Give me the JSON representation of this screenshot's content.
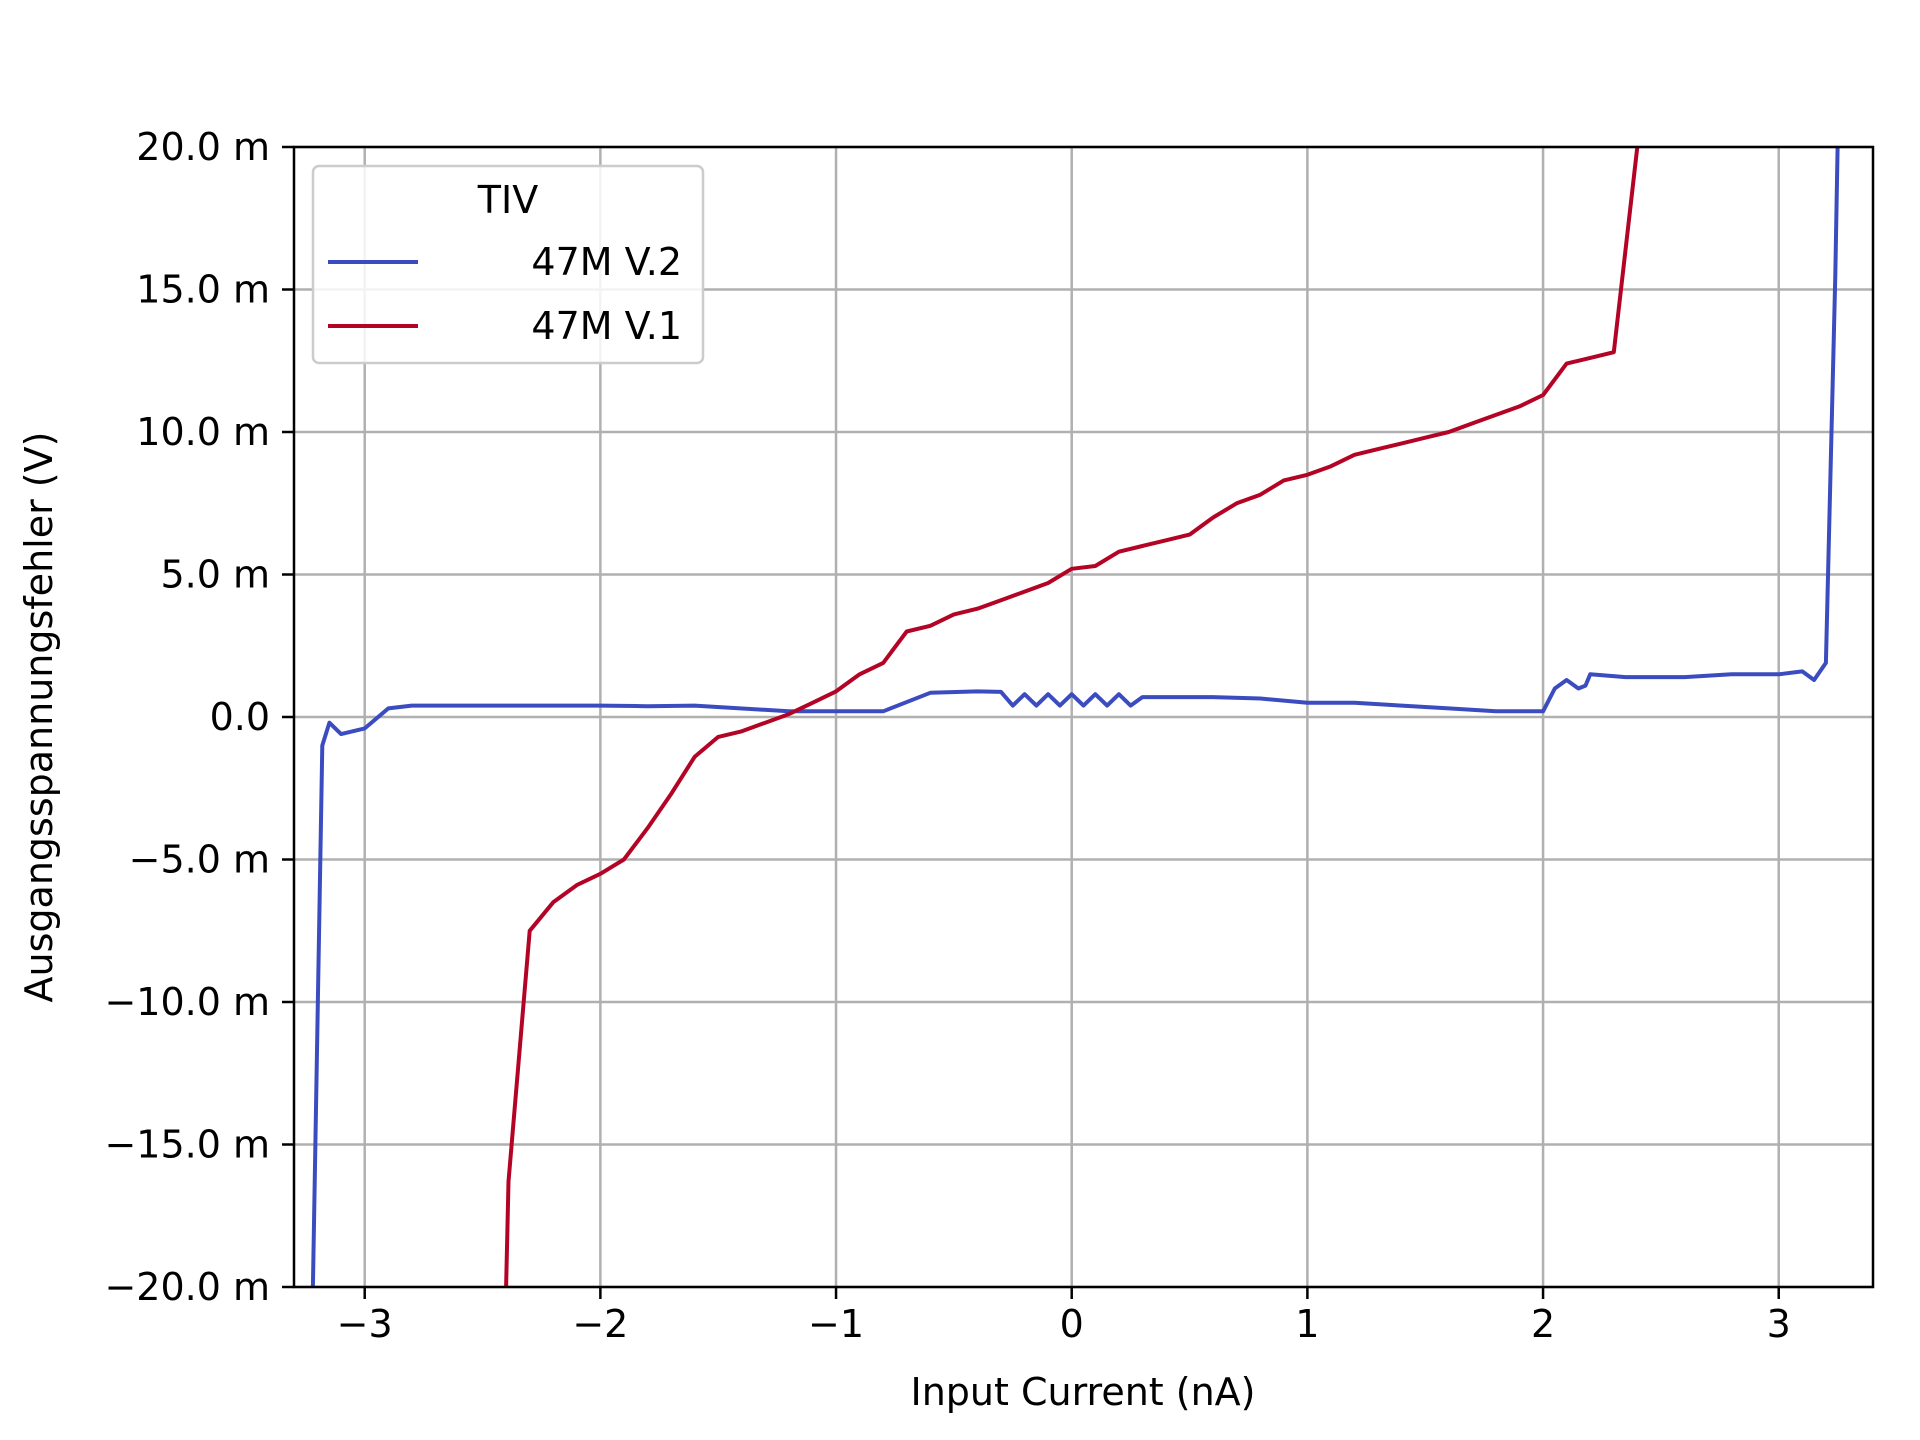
{
  "chart_data": {
    "type": "line",
    "xlabel": "Input Current (nA)",
    "ylabel": "Ausgangsspannungsfehler (V)",
    "xlim": [
      -3.3,
      3.4
    ],
    "ylim": [
      -0.02,
      0.02
    ],
    "grid": true,
    "legend": {
      "title": "TIV",
      "placement": "top-left"
    },
    "x_ticks": [
      {
        "value": -3,
        "label": "−3"
      },
      {
        "value": -2,
        "label": "−2"
      },
      {
        "value": -1,
        "label": "−1"
      },
      {
        "value": 0,
        "label": "0"
      },
      {
        "value": 1,
        "label": "1"
      },
      {
        "value": 2,
        "label": "2"
      },
      {
        "value": 3,
        "label": "3"
      }
    ],
    "y_ticks": [
      {
        "value": 0.02,
        "label": "20.0 m"
      },
      {
        "value": 0.015,
        "label": "15.0 m"
      },
      {
        "value": 0.01,
        "label": "10.0 m"
      },
      {
        "value": 0.005,
        "label": "5.0 m"
      },
      {
        "value": 0.0,
        "label": "0.0"
      },
      {
        "value": -0.005,
        "label": "−5.0 m"
      },
      {
        "value": -0.01,
        "label": "−10.0 m"
      },
      {
        "value": -0.015,
        "label": "−15.0 m"
      },
      {
        "value": -0.02,
        "label": "−20.0 m"
      }
    ],
    "series": [
      {
        "name": "47M V.2",
        "color": "#3b4cc0",
        "points": [
          [
            -3.22,
            -0.02
          ],
          [
            -3.18,
            -0.001
          ],
          [
            -3.15,
            -0.0002
          ],
          [
            -3.1,
            -0.0006
          ],
          [
            -3.0,
            -0.0004
          ],
          [
            -2.9,
            0.0003
          ],
          [
            -2.8,
            0.0004
          ],
          [
            -2.0,
            0.0004
          ],
          [
            -1.8,
            0.00038
          ],
          [
            -1.6,
            0.0004
          ],
          [
            -1.2,
            0.0002
          ],
          [
            -0.8,
            0.0002
          ],
          [
            -0.6,
            0.00085
          ],
          [
            -0.4,
            0.0009
          ],
          [
            -0.3,
            0.00088
          ],
          [
            -0.25,
            0.0004
          ],
          [
            -0.2,
            0.0008
          ],
          [
            -0.15,
            0.0004
          ],
          [
            -0.1,
            0.0008
          ],
          [
            -0.05,
            0.0004
          ],
          [
            0.0,
            0.0008
          ],
          [
            0.05,
            0.0004
          ],
          [
            0.1,
            0.0008
          ],
          [
            0.15,
            0.0004
          ],
          [
            0.2,
            0.0008
          ],
          [
            0.25,
            0.0004
          ],
          [
            0.3,
            0.0007
          ],
          [
            0.6,
            0.0007
          ],
          [
            0.8,
            0.00065
          ],
          [
            1.0,
            0.0005
          ],
          [
            1.2,
            0.0005
          ],
          [
            1.4,
            0.0004
          ],
          [
            1.6,
            0.0003
          ],
          [
            1.8,
            0.0002
          ],
          [
            2.0,
            0.0002
          ],
          [
            2.05,
            0.001
          ],
          [
            2.1,
            0.0013
          ],
          [
            2.15,
            0.001
          ],
          [
            2.18,
            0.0011
          ],
          [
            2.2,
            0.0015
          ],
          [
            2.35,
            0.0014
          ],
          [
            2.6,
            0.0014
          ],
          [
            2.8,
            0.0015
          ],
          [
            3.0,
            0.0015
          ],
          [
            3.1,
            0.0016
          ],
          [
            3.15,
            0.0013
          ],
          [
            3.2,
            0.0019
          ],
          [
            3.24,
            0.0155
          ],
          [
            3.25,
            0.02
          ]
        ]
      },
      {
        "name": "47M V.1",
        "color": "#b40426",
        "points": [
          [
            -2.4,
            -0.02
          ],
          [
            -2.39,
            -0.0163
          ],
          [
            -2.3,
            -0.0075
          ],
          [
            -2.2,
            -0.0065
          ],
          [
            -2.1,
            -0.0059
          ],
          [
            -2.0,
            -0.0055
          ],
          [
            -1.9,
            -0.005
          ],
          [
            -1.8,
            -0.0039
          ],
          [
            -1.7,
            -0.0027
          ],
          [
            -1.6,
            -0.0014
          ],
          [
            -1.5,
            -0.0007
          ],
          [
            -1.4,
            -0.0005
          ],
          [
            -1.3,
            -0.0002
          ],
          [
            -1.2,
            0.0001
          ],
          [
            -1.1,
            0.0005
          ],
          [
            -1.0,
            0.0009
          ],
          [
            -0.9,
            0.0015
          ],
          [
            -0.8,
            0.0019
          ],
          [
            -0.7,
            0.003
          ],
          [
            -0.6,
            0.0032
          ],
          [
            -0.5,
            0.0036
          ],
          [
            -0.4,
            0.0038
          ],
          [
            -0.3,
            0.0041
          ],
          [
            -0.2,
            0.0044
          ],
          [
            -0.1,
            0.0047
          ],
          [
            0.0,
            0.0052
          ],
          [
            0.1,
            0.0053
          ],
          [
            0.2,
            0.0058
          ],
          [
            0.3,
            0.006
          ],
          [
            0.4,
            0.0062
          ],
          [
            0.5,
            0.0064
          ],
          [
            0.6,
            0.007
          ],
          [
            0.7,
            0.0075
          ],
          [
            0.8,
            0.0078
          ],
          [
            0.9,
            0.0083
          ],
          [
            1.0,
            0.0085
          ],
          [
            1.1,
            0.0088
          ],
          [
            1.2,
            0.0092
          ],
          [
            1.3,
            0.0094
          ],
          [
            1.4,
            0.0096
          ],
          [
            1.5,
            0.0098
          ],
          [
            1.6,
            0.01
          ],
          [
            1.7,
            0.0103
          ],
          [
            1.8,
            0.0106
          ],
          [
            1.9,
            0.0109
          ],
          [
            2.0,
            0.0113
          ],
          [
            2.1,
            0.0124
          ],
          [
            2.2,
            0.0126
          ],
          [
            2.3,
            0.0128
          ],
          [
            2.4,
            0.02
          ]
        ]
      }
    ]
  }
}
